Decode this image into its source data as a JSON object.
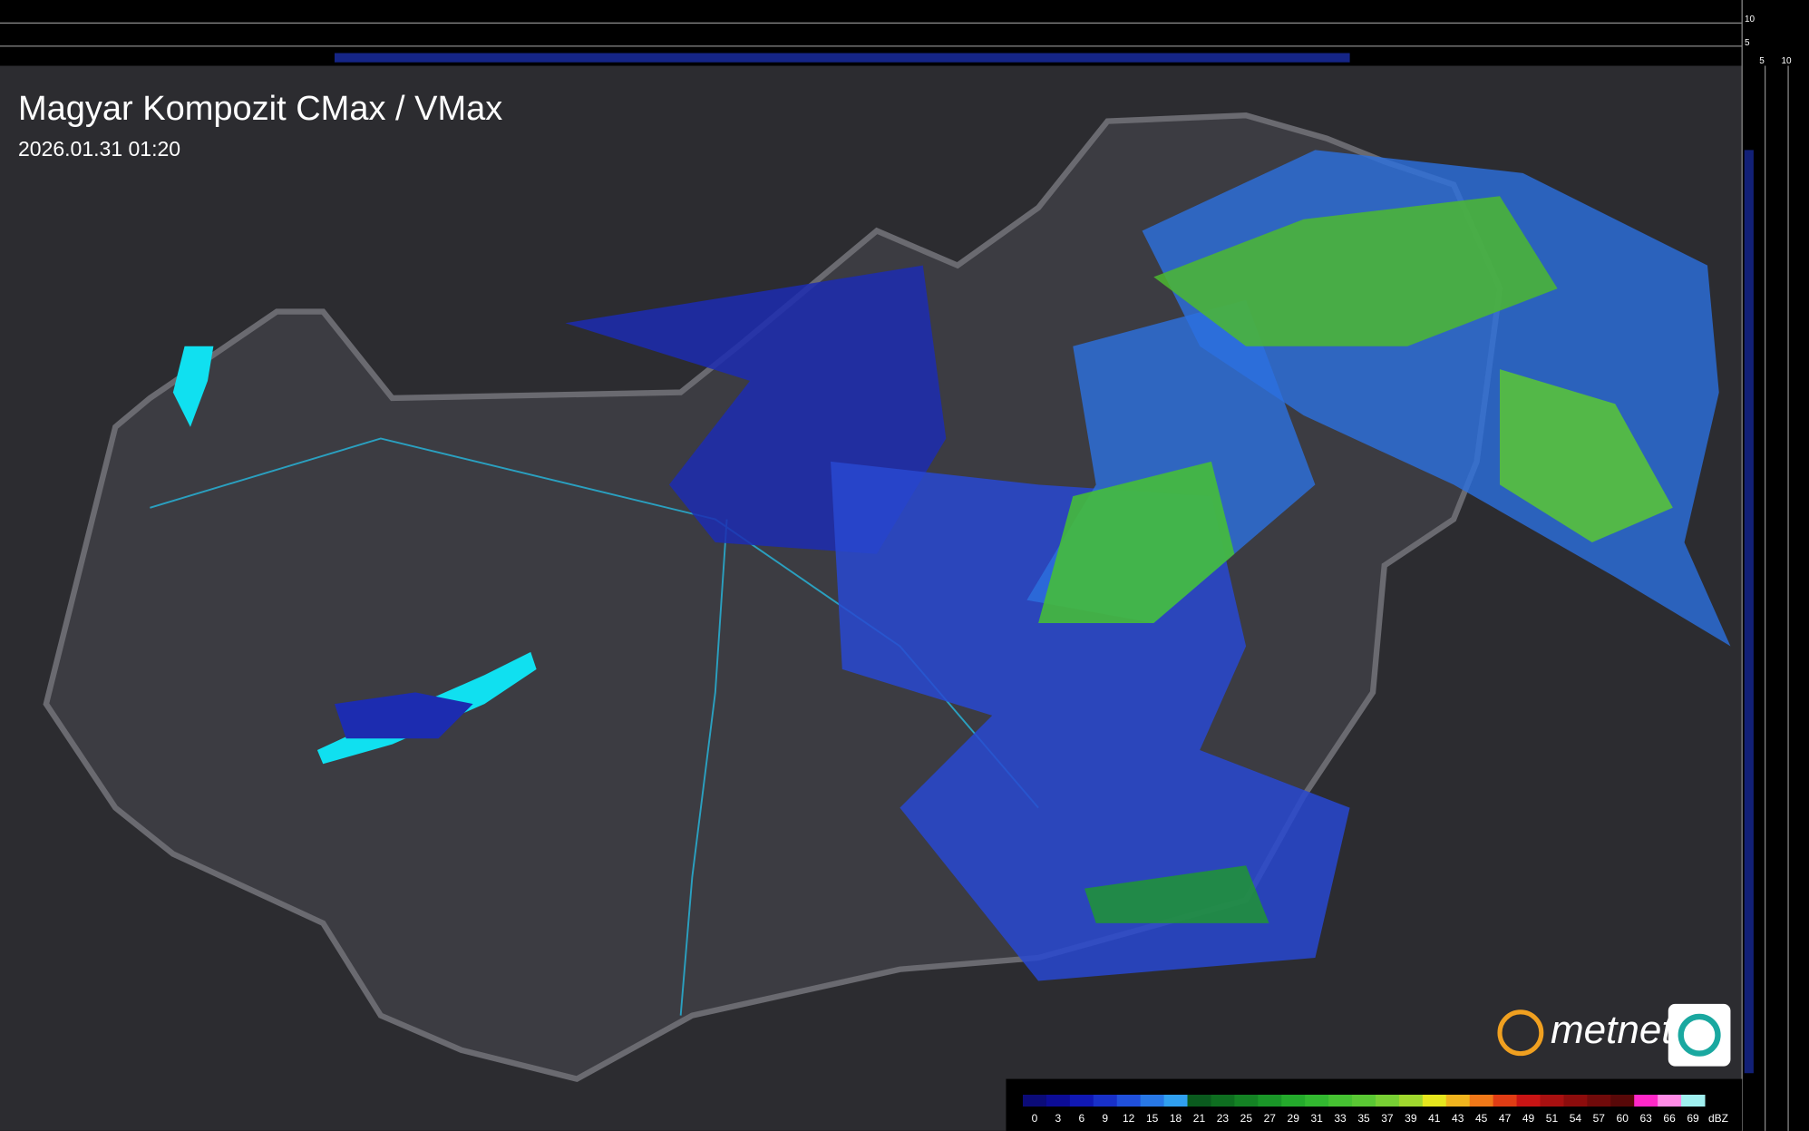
{
  "header": {
    "title": "Magyar Kompozit CMax / VMax",
    "timestamp": "2026.01.31 01:20"
  },
  "side_scale": {
    "vertical": [
      "10",
      "5"
    ],
    "horizontal": [
      "5",
      "10"
    ]
  },
  "brand": "metnet",
  "legend": {
    "unit": "dBZ",
    "ticks": [
      0,
      3,
      6,
      9,
      12,
      15,
      18,
      21,
      23,
      25,
      27,
      29,
      31,
      33,
      35,
      37,
      39,
      41,
      43,
      45,
      47,
      49,
      51,
      54,
      57,
      60,
      63,
      66,
      69
    ],
    "colors": [
      "#0b0b78",
      "#0c0c96",
      "#1018b4",
      "#1830c8",
      "#2050dc",
      "#2878e6",
      "#30a0f0",
      "#0a5a1e",
      "#0e6e20",
      "#148224",
      "#1a9628",
      "#24aa2c",
      "#32b830",
      "#46c232",
      "#5ac834",
      "#78d034",
      "#a0d82e",
      "#e6e61e",
      "#f0b41e",
      "#f07818",
      "#e03c14",
      "#c81414",
      "#a81010",
      "#8c0c0c",
      "#700a0a",
      "#580808",
      "#ff28c8",
      "#ff8ce6",
      "#a0f0f0"
    ]
  }
}
